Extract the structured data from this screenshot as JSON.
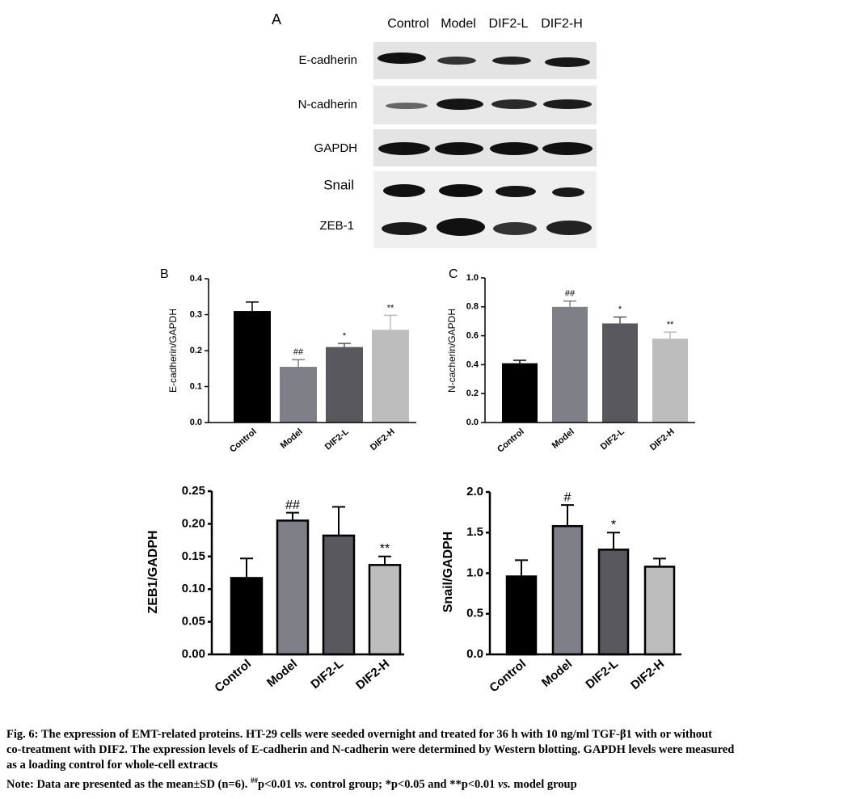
{
  "panel_a": {
    "panel": "A",
    "lanes": [
      "Control",
      "Model",
      "DIF2-L",
      "DIF2-H"
    ],
    "proteins": [
      "E-cadherin",
      "N-cadherin",
      "GAPDH",
      "Snail",
      "ZEB-1"
    ]
  },
  "chart_data": [
    {
      "type": "bar",
      "panel": "B",
      "ylabel": "E-cadherin/GAPDH",
      "categories": [
        "Control",
        "Model",
        "DIF2-L",
        "DIF2-H"
      ],
      "values": [
        0.31,
        0.155,
        0.21,
        0.258
      ],
      "errors": [
        0.025,
        0.02,
        0.01,
        0.04
      ],
      "annotations": [
        null,
        "##",
        "*",
        "**"
      ],
      "colors": [
        "#000000",
        "#7f7f87",
        "#58585e",
        "#bdbdbd"
      ],
      "ylim": [
        0,
        0.4
      ],
      "yticks": [
        {
          "value": 0,
          "label": "0.0"
        },
        0.1,
        0.2,
        0.3,
        0.4
      ]
    },
    {
      "type": "bar",
      "panel": "C",
      "ylabel": "N-cacherin/GAPDH",
      "categories": [
        "Control",
        "Model",
        "DIF2-L",
        "DIF2-H"
      ],
      "values": [
        0.41,
        0.8,
        0.685,
        0.58
      ],
      "errors": [
        0.02,
        0.04,
        0.045,
        0.045
      ],
      "annotations": [
        null,
        "##",
        "*",
        "**"
      ],
      "colors": [
        "#000000",
        "#7f7f87",
        "#58585e",
        "#bdbdbd"
      ],
      "ylim": [
        0,
        1.0
      ],
      "yticks": [
        {
          "value": 0,
          "label": "0.0"
        },
        0.2,
        0.4,
        0.6,
        0.8,
        {
          "value": 1,
          "label": "1.0"
        }
      ]
    },
    {
      "type": "bar",
      "ylabel": "ZEB1/GADPH",
      "categories": [
        "Control",
        "Model",
        "DIF2-L",
        "DIF2-H"
      ],
      "values": [
        0.117,
        0.205,
        0.182,
        0.137
      ],
      "errors": [
        0.03,
        0.012,
        0.044,
        0.013
      ],
      "annotations": [
        null,
        "##",
        null,
        "**"
      ],
      "colors": [
        "#000000",
        "#7f7f87",
        "#58585e",
        "#bdbdbd"
      ],
      "edgecolor": "#000000",
      "ylim": [
        0,
        0.25
      ],
      "yticks": [
        {
          "value": 0,
          "label": "0.00"
        },
        0.05,
        {
          "value": 0.1,
          "label": "0.10"
        },
        0.15,
        {
          "value": 0.2,
          "label": "0.20"
        },
        0.25
      ]
    },
    {
      "type": "bar",
      "ylabel": "Snail/GADPH",
      "categories": [
        "Control",
        "Model",
        "DIF2-L",
        "DIF2-H"
      ],
      "values": [
        0.96,
        1.58,
        1.29,
        1.08
      ],
      "errors": [
        0.2,
        0.26,
        0.21,
        0.1
      ],
      "annotations": [
        null,
        "#",
        "*",
        null
      ],
      "colors": [
        "#000000",
        "#7f7f87",
        "#58585e",
        "#bdbdbd"
      ],
      "edgecolor": "#000000",
      "ylim": [
        0,
        2.0
      ],
      "yticks": [
        {
          "value": 0,
          "label": "0.0"
        },
        0.5,
        {
          "value": 1,
          "label": "1.0"
        },
        1.5,
        {
          "value": 2,
          "label": "2.0"
        }
      ]
    }
  ],
  "caption": {
    "lines": [
      "Fig. 6: The expression of EMT-related proteins. HT-29 cells were seeded overnight and treated for 36 h with 10 ng/ml TGF-β1 with or without",
      "co-treatment with DIF2. The expression levels of E-cadherin and N-cadherin were determined by Western blotting. GAPDH levels were measured",
      "as a loading control for whole-cell extracts"
    ],
    "note": [
      "Note: Data are presented as the mean±SD (n=6). ",
      "##",
      "p<0.01 ",
      "vs.",
      " control group; *p<0.05 and **p<0.01 ",
      "vs.",
      " model group"
    ]
  }
}
